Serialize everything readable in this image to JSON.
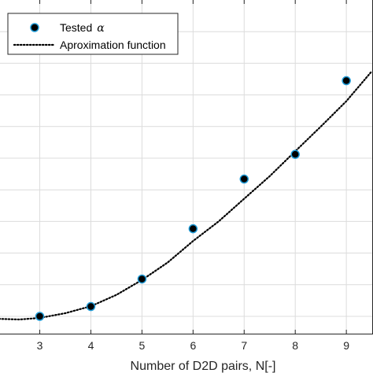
{
  "chart_data": {
    "type": "scatter",
    "xlabel": "Number of D2D pairs, N[-]",
    "xlim": [
      2.2,
      9.5
    ],
    "ylim": [
      0.0,
      1.0
    ],
    "x_ticks": [
      3,
      4,
      5,
      6,
      7,
      8,
      9
    ],
    "grid": true,
    "legend_position": "top-left",
    "series": [
      {
        "name": "Tested",
        "name_symbol": "α",
        "kind": "markers",
        "color": "#000000",
        "edge_color": "#1f9bd7",
        "x": [
          3,
          4,
          5,
          6,
          7,
          8,
          9
        ],
        "y": [
          0.0,
          0.031,
          0.118,
          0.277,
          0.434,
          0.512,
          0.745
        ]
      },
      {
        "name": "Aproximation function",
        "kind": "dotted-line",
        "color": "#000000",
        "x": [
          2.2,
          2.6,
          3.0,
          3.5,
          4.0,
          4.5,
          5.0,
          5.5,
          6.0,
          6.5,
          7.0,
          7.5,
          8.0,
          8.5,
          9.0,
          9.5
        ],
        "y": [
          -0.008,
          -0.01,
          -0.005,
          0.01,
          0.032,
          0.068,
          0.115,
          0.17,
          0.238,
          0.3,
          0.372,
          0.443,
          0.522,
          0.6,
          0.68,
          0.775
        ]
      }
    ]
  }
}
